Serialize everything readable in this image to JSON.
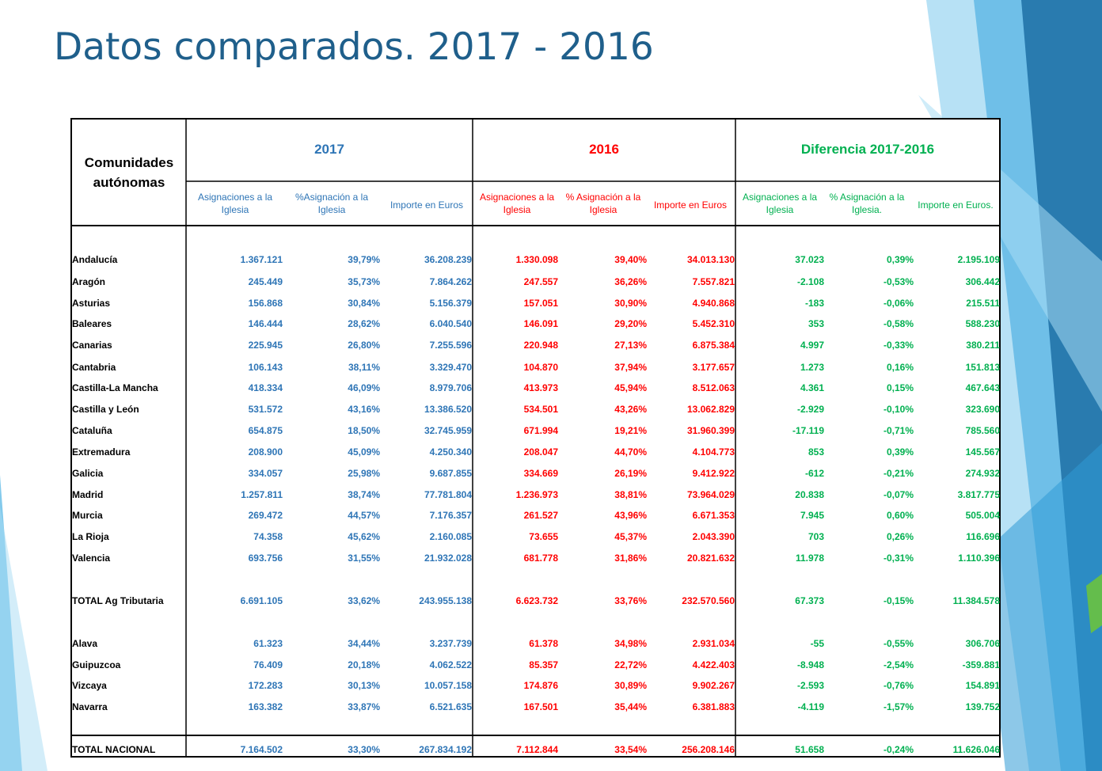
{
  "slide": {
    "title": "Datos comparados. 2017 - 2016"
  },
  "table": {
    "header": {
      "region": "Comunidades autónomas",
      "groups": [
        "2017",
        "2016",
        "Diferencia 2017-2016"
      ],
      "sub_2017": [
        "Asignaciones a la Iglesia",
        "%Asignación a la Iglesia",
        "Importe en Euros"
      ],
      "sub_2016": [
        "Asignaciones a la Iglesia",
        "% Asignación a la Iglesia",
        "Importe en Euros"
      ],
      "sub_diff": [
        "Asignaciones a la Iglesia",
        "% Asignación a la Iglesia.",
        "Importe en Euros."
      ]
    },
    "colors": {
      "y2017": "#2e75b6",
      "y2016": "#ff0000",
      "diff": "#00b050"
    },
    "rows": [
      {
        "region": "Andalucía",
        "a17": "1.367.121",
        "p17": "39,79%",
        "e17": "36.208.239",
        "a16": "1.330.098",
        "p16": "39,40%",
        "e16": "34.013.130",
        "ad": "37.023",
        "pd": "0,39%",
        "ed": "2.195.109"
      },
      {
        "region": "Aragón",
        "a17": "245.449",
        "p17": "35,73%",
        "e17": "7.864.262",
        "a16": "247.557",
        "p16": "36,26%",
        "e16": "7.557.821",
        "ad": "-2.108",
        "pd": "-0,53%",
        "ed": "306.442"
      },
      {
        "region": "Asturias",
        "a17": "156.868",
        "p17": "30,84%",
        "e17": "5.156.379",
        "a16": "157.051",
        "p16": "30,90%",
        "e16": "4.940.868",
        "ad": "-183",
        "pd": "-0,06%",
        "ed": "215.511"
      },
      {
        "region": "Baleares",
        "a17": "146.444",
        "p17": "28,62%",
        "e17": "6.040.540",
        "a16": "146.091",
        "p16": "29,20%",
        "e16": "5.452.310",
        "ad": "353",
        "pd": "-0,58%",
        "ed": "588.230"
      },
      {
        "region": "Canarias",
        "a17": "225.945",
        "p17": "26,80%",
        "e17": "7.255.596",
        "a16": "220.948",
        "p16": "27,13%",
        "e16": "6.875.384",
        "ad": "4.997",
        "pd": "-0,33%",
        "ed": "380.211"
      },
      {
        "region": "Cantabria",
        "a17": "106.143",
        "p17": "38,11%",
        "e17": "3.329.470",
        "a16": "104.870",
        "p16": "37,94%",
        "e16": "3.177.657",
        "ad": "1.273",
        "pd": "0,16%",
        "ed": "151.813"
      },
      {
        "region": "Castilla-La Mancha",
        "a17": "418.334",
        "p17": "46,09%",
        "e17": "8.979.706",
        "a16": "413.973",
        "p16": "45,94%",
        "e16": "8.512.063",
        "ad": "4.361",
        "pd": "0,15%",
        "ed": "467.643"
      },
      {
        "region": "Castilla y León",
        "a17": "531.572",
        "p17": "43,16%",
        "e17": "13.386.520",
        "a16": "534.501",
        "p16": "43,26%",
        "e16": "13.062.829",
        "ad": "-2.929",
        "pd": "-0,10%",
        "ed": "323.690"
      },
      {
        "region": "Cataluña",
        "a17": "654.875",
        "p17": "18,50%",
        "e17": "32.745.959",
        "a16": "671.994",
        "p16": "19,21%",
        "e16": "31.960.399",
        "ad": "-17.119",
        "pd": "-0,71%",
        "ed": "785.560"
      },
      {
        "region": "Extremadura",
        "a17": "208.900",
        "p17": "45,09%",
        "e17": "4.250.340",
        "a16": "208.047",
        "p16": "44,70%",
        "e16": "4.104.773",
        "ad": "853",
        "pd": "0,39%",
        "ed": "145.567"
      },
      {
        "region": "Galicia",
        "a17": "334.057",
        "p17": "25,98%",
        "e17": "9.687.855",
        "a16": "334.669",
        "p16": "26,19%",
        "e16": "9.412.922",
        "ad": "-612",
        "pd": "-0,21%",
        "ed": "274.932"
      },
      {
        "region": "Madrid",
        "a17": "1.257.811",
        "p17": "38,74%",
        "e17": "77.781.804",
        "a16": "1.236.973",
        "p16": "38,81%",
        "e16": "73.964.029",
        "ad": "20.838",
        "pd": "-0,07%",
        "ed": "3.817.775"
      },
      {
        "region": "Murcia",
        "a17": "269.472",
        "p17": "44,57%",
        "e17": "7.176.357",
        "a16": "261.527",
        "p16": "43,96%",
        "e16": "6.671.353",
        "ad": "7.945",
        "pd": "0,60%",
        "ed": "505.004"
      },
      {
        "region": "La Rioja",
        "a17": "74.358",
        "p17": "45,62%",
        "e17": "2.160.085",
        "a16": "73.655",
        "p16": "45,37%",
        "e16": "2.043.390",
        "ad": "703",
        "pd": "0,26%",
        "ed": "116.696"
      },
      {
        "region": "Valencia",
        "a17": "693.756",
        "p17": "31,55%",
        "e17": "21.932.028",
        "a16": "681.778",
        "p16": "31,86%",
        "e16": "20.821.632",
        "ad": "11.978",
        "pd": "-0,31%",
        "ed": "1.110.396"
      },
      {
        "region": "TOTAL Ag Tributaria",
        "a17": "6.691.105",
        "p17": "33,62%",
        "e17": "243.955.138",
        "a16": "6.623.732",
        "p16": "33,76%",
        "e16": "232.570.560",
        "ad": "67.373",
        "pd": "-0,15%",
        "ed": "11.384.578"
      },
      {
        "region": "Alava",
        "a17": "61.323",
        "p17": "34,44%",
        "e17": "3.237.739",
        "a16": "61.378",
        "p16": "34,98%",
        "e16": "2.931.034",
        "ad": "-55",
        "pd": "-0,55%",
        "ed": "306.706"
      },
      {
        "region": "Guipuzcoa",
        "a17": "76.409",
        "p17": "20,18%",
        "e17": "4.062.522",
        "a16": "85.357",
        "p16": "22,72%",
        "e16": "4.422.403",
        "ad": "-8.948",
        "pd": "-2,54%",
        "ed": "-359.881"
      },
      {
        "region": "Vizcaya",
        "a17": "172.283",
        "p17": "30,13%",
        "e17": "10.057.158",
        "a16": "174.876",
        "p16": "30,89%",
        "e16": "9.902.267",
        "ad": "-2.593",
        "pd": "-0,76%",
        "ed": "154.891"
      },
      {
        "region": "Navarra",
        "a17": "163.382",
        "p17": "33,87%",
        "e17": "6.521.635",
        "a16": "167.501",
        "p16": "35,44%",
        "e16": "6.381.883",
        "ad": "-4.119",
        "pd": "-1,57%",
        "ed": "139.752"
      },
      {
        "region": "TOTAL NACIONAL",
        "a17": "7.164.502",
        "p17": "33,30%",
        "e17": "267.834.192",
        "a16": "7.112.844",
        "p16": "33,54%",
        "e16": "256.208.146",
        "ad": "51.658",
        "pd": "-0,24%",
        "ed": "11.626.046"
      }
    ]
  }
}
